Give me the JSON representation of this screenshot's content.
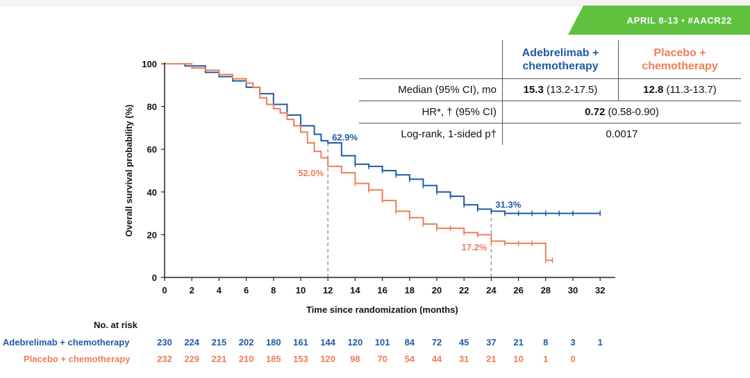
{
  "banner": "APRIL 8-13 • #AACR22",
  "colors": {
    "adebrelimab": "#1f5aa6",
    "placebo": "#ee7d57",
    "axis": "#222222"
  },
  "table": {
    "col1_line1": "Adebrelimab +",
    "col1_line2": "chemotherapy",
    "col2_line1": "Placebo +",
    "col2_line2": "chemotherapy",
    "row1_label": "Median (95% CI), mo",
    "row1_c1_bold": "15.3",
    "row1_c1_ci": " (13.2-17.5)",
    "row1_c2_bold": "12.8",
    "row1_c2_ci": " (11.3-13.7)",
    "row2_label": "HR*, † (95% CI)",
    "row2_bold": "0.72",
    "row2_ci": " (0.58-0.90)",
    "row3_label": "Log-rank, 1-sided p†",
    "row3_value": "0.0017"
  },
  "risk": {
    "title": "No. at risk",
    "adebrelimab_label": "Adebrelimab + chemotherapy",
    "placebo_label": "Placebo + chemotherapy",
    "adebrelimab": [
      "230",
      "224",
      "215",
      "202",
      "180",
      "161",
      "144",
      "120",
      "101",
      "84",
      "72",
      "45",
      "37",
      "21",
      "8",
      "3",
      "1"
    ],
    "placebo": [
      "232",
      "229",
      "221",
      "210",
      "185",
      "153",
      "120",
      "98",
      "70",
      "54",
      "44",
      "31",
      "21",
      "10",
      "1",
      "0"
    ]
  },
  "chart_data": {
    "type": "line",
    "xlabel": "Time since randomization (months)",
    "ylabel": "Overall survival probability (%)",
    "xlim": [
      0,
      33
    ],
    "ylim": [
      0,
      100
    ],
    "xticks": [
      "0",
      "2",
      "4",
      "6",
      "8",
      "10",
      "12",
      "14",
      "16",
      "18",
      "20",
      "22",
      "24",
      "26",
      "28",
      "30",
      "32"
    ],
    "yticks": [
      "0",
      "20",
      "40",
      "60",
      "80",
      "100"
    ],
    "series": [
      {
        "name": "Adebrelimab + chemotherapy",
        "x": [
          0,
          1.5,
          3,
          4,
          5,
          6,
          7,
          8,
          9,
          10,
          11,
          11.5,
          12,
          13,
          14,
          15,
          16,
          17,
          18,
          19,
          20,
          21,
          22,
          23,
          24,
          25,
          26,
          27,
          28,
          29,
          30,
          32
        ],
        "y": [
          100,
          99,
          96,
          94,
          92,
          89,
          86,
          81,
          76,
          71,
          67,
          64,
          63,
          57,
          53,
          52,
          50,
          48,
          46,
          43,
          40,
          38,
          34,
          32,
          31,
          30,
          30,
          30,
          30,
          30,
          30,
          30
        ]
      },
      {
        "name": "Placebo + chemotherapy",
        "x": [
          0,
          1,
          2,
          3,
          4,
          5,
          6,
          6.5,
          7,
          7.5,
          8,
          8.5,
          9,
          9.5,
          10,
          10.5,
          11,
          11.5,
          12,
          13,
          14,
          15,
          16,
          17,
          18,
          19,
          20,
          21,
          22,
          23,
          24,
          25,
          26,
          27,
          28,
          28.5
        ],
        "y": [
          100,
          100,
          98,
          97,
          95,
          93,
          91,
          89,
          84,
          81,
          79,
          77,
          74,
          71,
          68,
          63,
          59,
          56,
          52,
          49,
          44,
          41,
          36,
          31,
          28,
          25,
          23,
          23,
          21,
          20,
          17,
          16,
          16,
          16,
          8,
          8
        ]
      }
    ],
    "annotations": [
      {
        "x": 12,
        "y": 62.9,
        "text": "62.9%",
        "series": "Adebrelimab + chemotherapy"
      },
      {
        "x": 12,
        "y": 52.0,
        "text": "52.0%",
        "series": "Placebo + chemotherapy"
      },
      {
        "x": 24,
        "y": 31.3,
        "text": "31.3%",
        "series": "Adebrelimab + chemotherapy"
      },
      {
        "x": 24,
        "y": 17.2,
        "text": "17.2%",
        "series": "Placebo + chemotherapy"
      }
    ],
    "reference_lines_x": [
      12,
      24
    ]
  }
}
